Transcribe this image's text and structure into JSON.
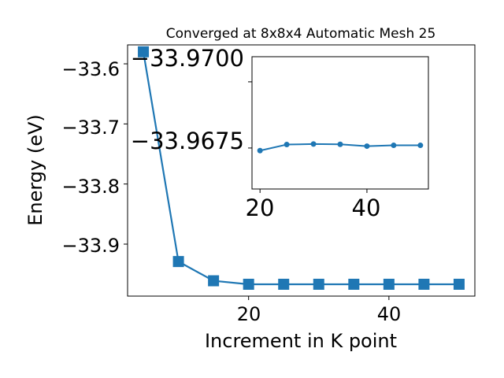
{
  "chart_data": [
    {
      "type": "line",
      "title": "Converged at 8x8x4 Automatic Mesh 25",
      "xlabel": "Increment in K point",
      "ylabel": "Energy (eV)",
      "xlim": [
        2.75,
        52.25
      ],
      "ylim": [
        -33.9865,
        -33.5685
      ],
      "x_ticks": [
        20,
        40
      ],
      "y_ticks": [
        -33.6,
        -33.7,
        -33.8,
        -33.9
      ],
      "x_tick_labels": [
        "20",
        "40"
      ],
      "y_tick_labels": [
        "−33.6",
        "−33.7",
        "−33.8",
        "−33.9"
      ],
      "marker": "square",
      "color": "#1f77b4",
      "grid": false,
      "series": [
        {
          "x": [
            5,
            10,
            15,
            20,
            25,
            30,
            35,
            40,
            45,
            50
          ],
          "values": [
            -33.58,
            -33.929,
            -33.961,
            -33.9668,
            -33.9668,
            -33.9668,
            -33.9668,
            -33.9668,
            -33.9668,
            -33.9668
          ]
        }
      ]
    },
    {
      "type": "line",
      "title": "",
      "xlabel": "",
      "ylabel": "",
      "xlim": [
        18.5,
        51.5
      ],
      "ylim": [
        -33.96595,
        -33.97095
      ],
      "x_ticks": [
        20,
        40
      ],
      "y_ticks": [
        -33.97,
        -33.9675
      ],
      "x_tick_labels": [
        "20",
        "40"
      ],
      "y_tick_labels": [
        "−33.9700",
        "−33.9675"
      ],
      "marker": "circle",
      "color": "#1f77b4",
      "grid": false,
      "series": [
        {
          "x": [
            20,
            25,
            30,
            35,
            40,
            45,
            50
          ],
          "values": [
            -33.9674,
            -33.96763,
            -33.96765,
            -33.96764,
            -33.96757,
            -33.9676,
            -33.9676
          ]
        }
      ]
    }
  ]
}
